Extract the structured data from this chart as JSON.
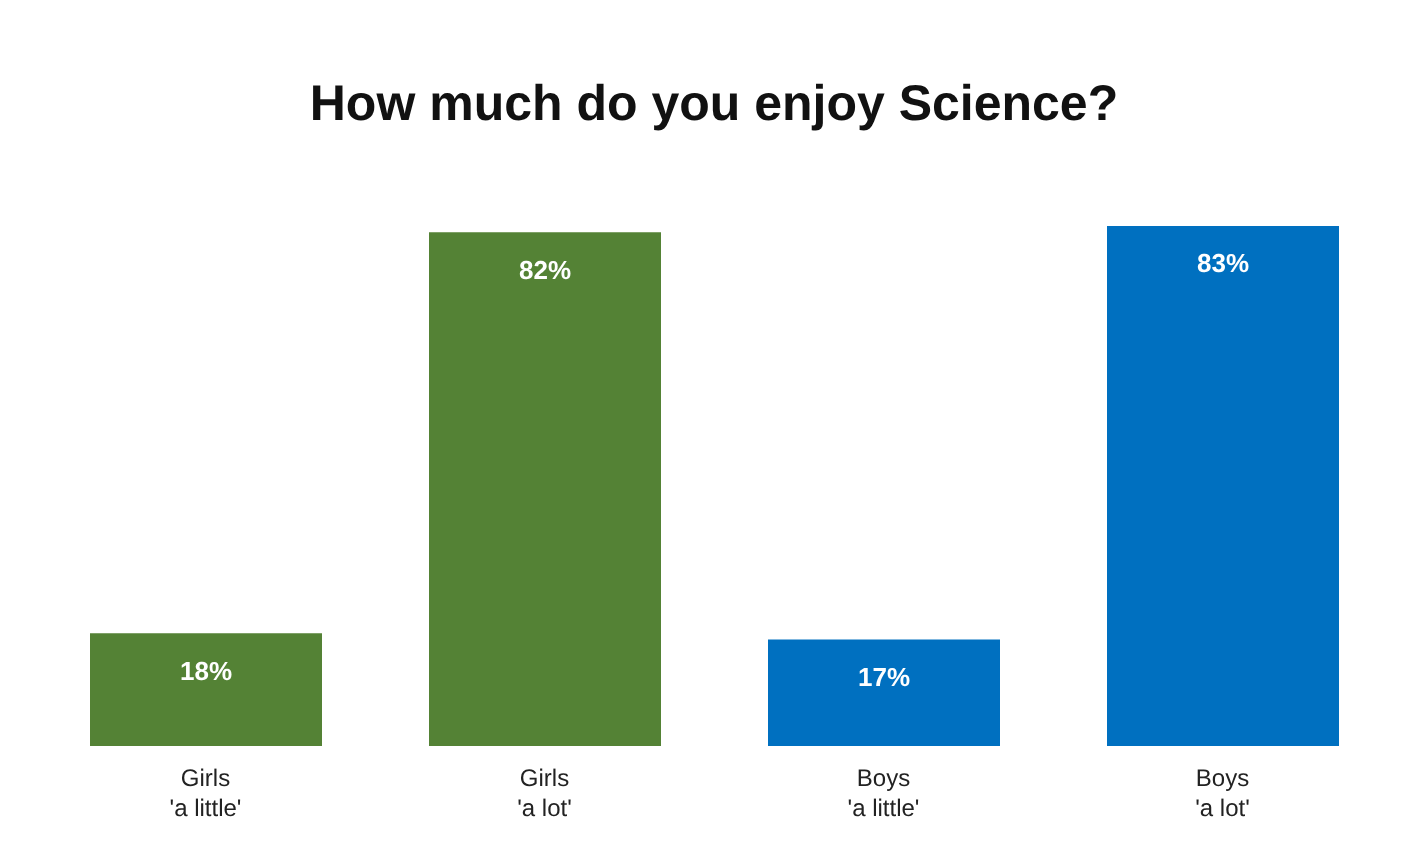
{
  "chart_data": {
    "type": "bar",
    "title": "How much do you enjoy Science?",
    "categories": [
      "Girls\n'a little'",
      "Girls\n'a lot'",
      "Boys\n'a little'",
      "Boys\n'a lot'"
    ],
    "values": [
      18,
      82,
      17,
      83
    ],
    "colors": [
      "#548235",
      "#548235",
      "#0070c0",
      "#0070c0"
    ],
    "value_labels": [
      "18%",
      "82%",
      "17%",
      "83%"
    ],
    "grid": false,
    "legend": false
  }
}
